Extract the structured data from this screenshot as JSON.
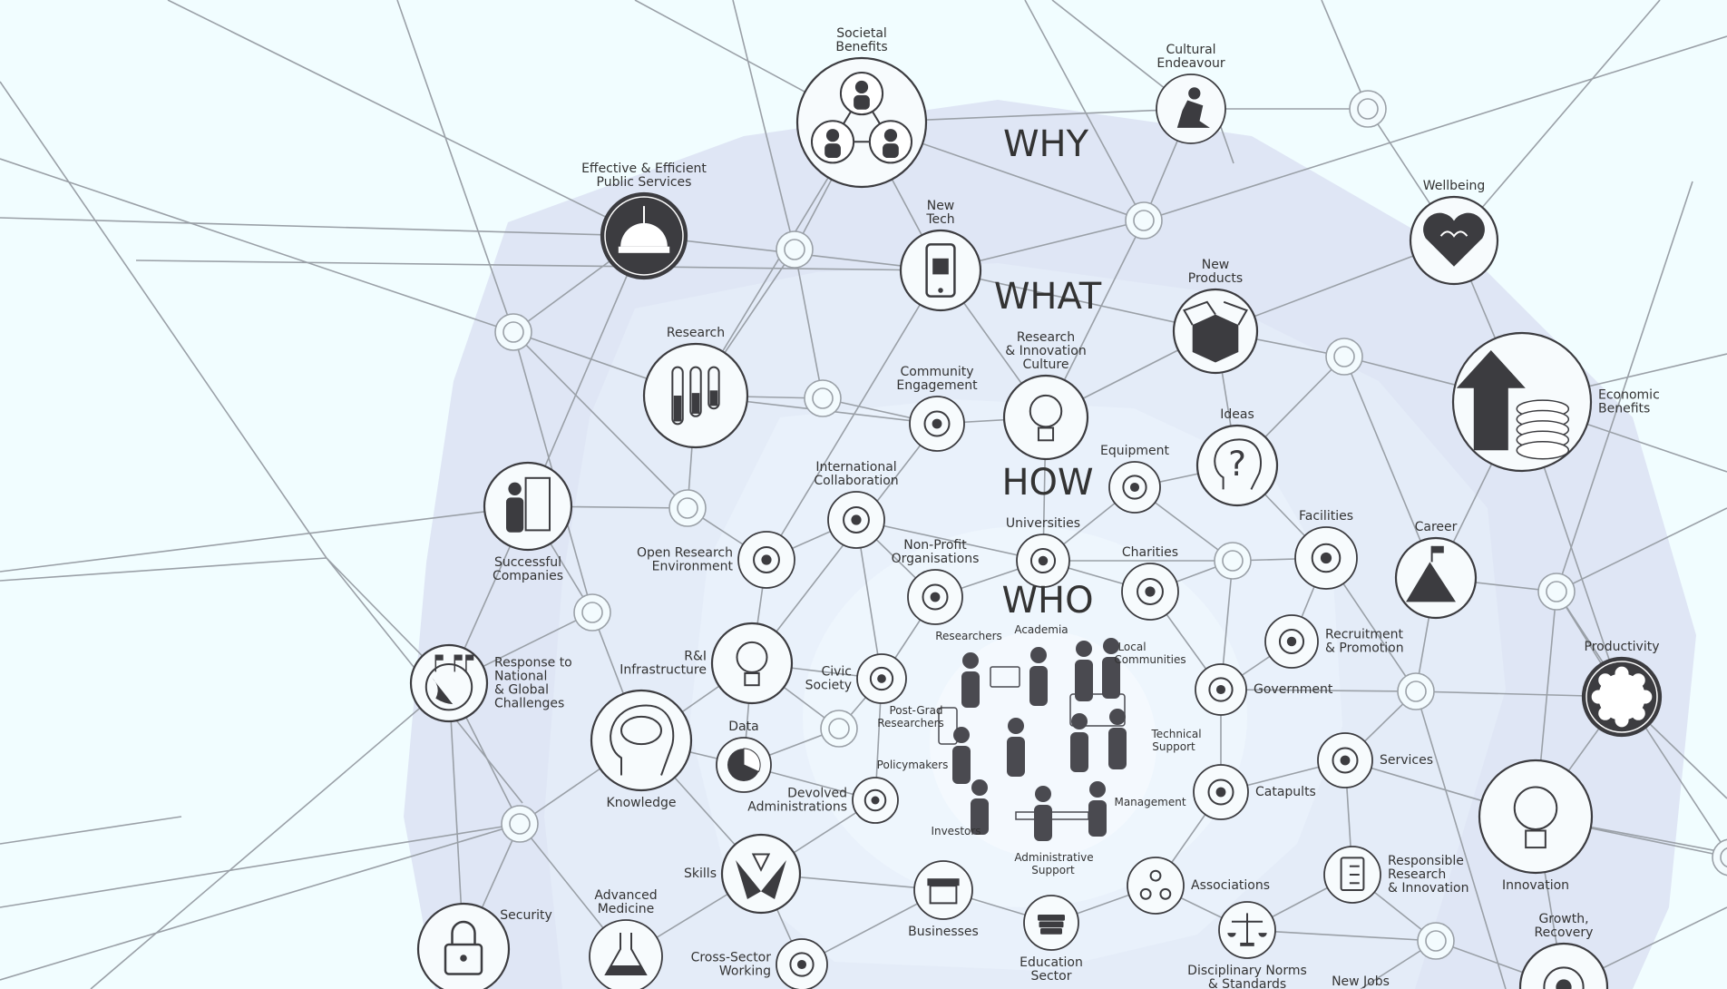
{
  "levels": {
    "why": "WHY",
    "what": "WHAT",
    "how": "HOW",
    "who": "WHO"
  },
  "nodes": {
    "societal_benefits": [
      "Societal",
      "Benefits"
    ],
    "cultural_endeavour": [
      "Cultural",
      "Endeavour"
    ],
    "public_services": [
      "Effective & Efficient",
      "Public Services"
    ],
    "wellbeing": [
      "Wellbeing"
    ],
    "new_tech": [
      "New",
      "Tech"
    ],
    "new_products": [
      "New",
      "Products"
    ],
    "research": [
      "Research"
    ],
    "ri_culture": [
      "Research",
      "& Innovation",
      "Culture"
    ],
    "community_engagement": [
      "Community",
      "Engagement"
    ],
    "ideas": [
      "Ideas"
    ],
    "economic_benefits": [
      "Economic",
      "Benefits"
    ],
    "equipment": [
      "Equipment"
    ],
    "international_collab": [
      "International",
      "Collaboration"
    ],
    "successful_companies": [
      "Successful",
      "Companies"
    ],
    "facilities": [
      "Facilities"
    ],
    "universities": [
      "Universities"
    ],
    "career": [
      "Career"
    ],
    "open_research": [
      "Open Research",
      "Environment"
    ],
    "non_profit": [
      "Non-Profit",
      "Organisations"
    ],
    "charities": [
      "Charities"
    ],
    "recruitment": [
      "Recruitment",
      "& Promotion"
    ],
    "productivity": [
      "Productivity"
    ],
    "response_challenges": [
      "Response to",
      "National",
      "& Global",
      "Challenges"
    ],
    "ri_infrastructure": [
      "R&I",
      "Infrastructure"
    ],
    "civic_society": [
      "Civic",
      "Society"
    ],
    "government": [
      "Government"
    ],
    "data": [
      "Data"
    ],
    "knowledge": [
      "Knowledge"
    ],
    "services": [
      "Services"
    ],
    "devolved": [
      "Devolved",
      "Administrations"
    ],
    "catapults": [
      "Catapults"
    ],
    "innovation": [
      "Innovation"
    ],
    "responsible_ri": [
      "Responsible",
      "Research",
      "& Innovation"
    ],
    "skills": [
      "Skills"
    ],
    "associations": [
      "Associations"
    ],
    "security": [
      "Security"
    ],
    "advanced_medicine": [
      "Advanced",
      "Medicine"
    ],
    "businesses": [
      "Businesses"
    ],
    "growth_recovery": [
      "Growth,",
      "Recovery"
    ],
    "education_sector": [
      "Education",
      "Sector"
    ],
    "disciplinary_norms": [
      "Disciplinary Norms",
      "& Standards"
    ],
    "cross_sector": [
      "Cross-Sector",
      "Working"
    ],
    "new_jobs": [
      "New Jobs"
    ]
  },
  "people": {
    "researchers": "Researchers",
    "academia": "Academia",
    "local_communities": [
      "Local",
      "Communities"
    ],
    "post_grad": [
      "Post-Grad",
      "Researchers"
    ],
    "technical_support": [
      "Technical",
      "Support"
    ],
    "policymakers": "Policymakers",
    "management": "Management",
    "investors": "Investors",
    "admin_support": [
      "Administrative",
      "Support"
    ]
  },
  "icons": [
    "people-network-icon",
    "thinker-icon",
    "capitol-dome-icon",
    "brain-heart-icon",
    "smartphone-icon",
    "open-box-icon",
    "test-tubes-icon",
    "people-lightbulb-icon",
    "speech-bubbles-icon",
    "question-head-icon",
    "arrow-coins-icon",
    "toolbox-icon",
    "globe-people-icon",
    "person-door-icon",
    "tools-building-icon",
    "graduation-cap-icon",
    "summit-flag-icon",
    "open-hands-icon",
    "hearts-icon",
    "heart-hands-icon",
    "magnifier-person-icon",
    "gear-arrow-icon",
    "globe-flags-icon",
    "lightbulb-flask-icon",
    "small-dome-icon",
    "town-hall-icon",
    "pie-chart-icon",
    "brain-head-icon",
    "cycle-phone-icon",
    "wave-figure-icon",
    "catapult-icon",
    "circuit-bulb-icon",
    "checklist-icon",
    "hands-shapes-icon",
    "molecule-icon",
    "padlock-icon",
    "flask-icon",
    "storefront-icon",
    "books-icon",
    "scales-icon",
    "handshake-icon",
    "money-icon"
  ],
  "colors": {
    "background": "#f1fdff",
    "why_band": "#dfe6f5",
    "what_band": "#e4ecf8",
    "how_band": "#e9f1fb",
    "who_band": "#eef6fd",
    "line": "#9aa0a7",
    "icon": "#3c3c40"
  }
}
